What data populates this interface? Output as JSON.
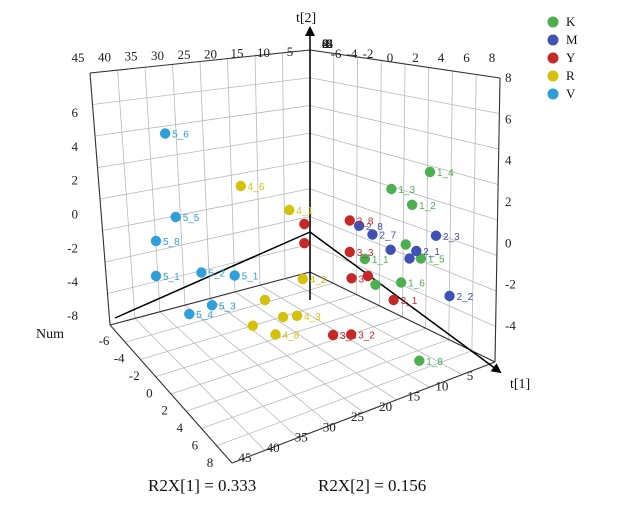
{
  "chart_data": {
    "type": "scatter",
    "projection": "3d",
    "axes": {
      "x": {
        "label": "t[1]",
        "ticks": [
          5,
          10,
          15,
          20,
          25,
          30,
          35,
          40,
          45
        ]
      },
      "y": {
        "label": "t[2]",
        "ticks": [
          -8,
          -6,
          -4,
          -2,
          0,
          2,
          4,
          6,
          8
        ],
        "back_ticks": [
          45,
          40,
          35,
          30,
          25,
          20,
          15,
          10,
          5
        ],
        "right_ticks": [
          0,
          2,
          4,
          6,
          8
        ]
      },
      "z": {
        "label": "Num",
        "ticks": [
          -6,
          -4,
          -2,
          0,
          2,
          4,
          6,
          8
        ],
        "left_ticks": [
          6,
          4,
          2,
          0,
          -2,
          -4,
          -8
        ],
        "right_ticks": [
          8,
          6,
          4,
          2,
          0,
          -2,
          -4
        ]
      }
    },
    "legend": {
      "position": "top-right",
      "items": [
        {
          "label": "K",
          "color": "#4caf50"
        },
        {
          "label": "M",
          "color": "#3f51b5"
        },
        {
          "label": "Y",
          "color": "#c62828"
        },
        {
          "label": "R",
          "color": "#d4c20a"
        },
        {
          "label": "V",
          "color": "#2e9fd8"
        }
      ]
    },
    "grid": true,
    "series": [
      {
        "name": "K",
        "color": "#4caf50",
        "points": [
          {
            "label": "1_4",
            "x": 3.0,
            "y": 3.6,
            "z": 0.0
          },
          {
            "label": "1_3",
            "x": 8.5,
            "y": 2.8,
            "z": 0.5
          },
          {
            "label": "1_2",
            "x": 6.0,
            "y": 2.0,
            "z": 0.8
          },
          {
            "label": "1_1",
            "x": 12.0,
            "y": -1.2,
            "z": 0.5
          },
          {
            "label": "1_5",
            "x": 5.0,
            "y": -1.0,
            "z": 1.0
          },
          {
            "label": "1_6",
            "x": 8.0,
            "y": -2.2,
            "z": 1.5
          },
          {
            "label": "1_8",
            "x": 6.0,
            "y": -6.5,
            "z": 2.0
          },
          {
            "label": "",
            "x": 11.0,
            "y": -2.5,
            "z": 1.0
          },
          {
            "label": "",
            "x": 7.0,
            "y": -0.2,
            "z": 1.0
          }
        ]
      },
      {
        "name": "M",
        "color": "#3f51b5",
        "points": [
          {
            "label": "2_3",
            "x": 3.0,
            "y": 0.3,
            "z": 1.0
          },
          {
            "label": "2_1",
            "x": 6.0,
            "y": -0.4,
            "z": 1.5
          },
          {
            "label": "2_2",
            "x": 2.0,
            "y": -2.8,
            "z": 2.0
          },
          {
            "label": "2_7",
            "x": 11.0,
            "y": 0.2,
            "z": 0.5
          },
          {
            "label": "2_8",
            "x": 13.0,
            "y": 0.8,
            "z": 0.8
          },
          {
            "label": "",
            "x": 9.0,
            "y": -0.5,
            "z": 1.0
          },
          {
            "label": "",
            "x": 6.5,
            "y": -1.0,
            "z": 1.0
          }
        ]
      },
      {
        "name": "Y",
        "color": "#c62828",
        "points": [
          {
            "label": "3_8",
            "x": 14.0,
            "y": 1.0,
            "z": 0.5
          },
          {
            "label": "3_3",
            "x": 14.0,
            "y": -0.8,
            "z": 0.5
          },
          {
            "label": "3_1",
            "x": 9.0,
            "y": -3.2,
            "z": 1.5
          },
          {
            "label": "3_2",
            "x": 15.0,
            "y": -5.0,
            "z": 2.0
          },
          {
            "label": "3_4",
            "x": 17.0,
            "y": -5.2,
            "z": 1.5
          },
          {
            "label": "3",
            "x": 14.0,
            "y": -2.2,
            "z": 0.8
          },
          {
            "label": "",
            "x": 20.0,
            "y": 0.8,
            "z": 0.5
          },
          {
            "label": "",
            "x": 20.0,
            "y": -0.3,
            "z": 0.5
          },
          {
            "label": "",
            "x": 12.0,
            "y": -2.0,
            "z": 1.0
          }
        ]
      },
      {
        "name": "R",
        "color": "#d4c20a",
        "points": [
          {
            "label": "4_6",
            "x": 28.0,
            "y": 2.8,
            "z": 0.0
          },
          {
            "label": "4_1",
            "x": 22.0,
            "y": 1.6,
            "z": 0.5
          },
          {
            "label": "4_2",
            "x": 21.0,
            "y": -2.0,
            "z": 1.5
          },
          {
            "label": "4_3",
            "x": 22.0,
            "y": -4.0,
            "z": 1.8
          },
          {
            "label": "4_8",
            "x": 25.0,
            "y": -5.0,
            "z": 2.0
          },
          {
            "label": "",
            "x": 26.0,
            "y": -3.2,
            "z": 1.5
          },
          {
            "label": "",
            "x": 24.0,
            "y": -4.0,
            "z": 2.0
          },
          {
            "label": "",
            "x": 28.0,
            "y": -4.5,
            "z": 2.0
          }
        ]
      },
      {
        "name": "V",
        "color": "#2e9fd8",
        "points": [
          {
            "label": "5_6",
            "x": 38.0,
            "y": 5.8,
            "z": 0.0
          },
          {
            "label": "5_5",
            "x": 37.0,
            "y": 1.2,
            "z": 0.5
          },
          {
            "label": "5_8",
            "x": 40.0,
            "y": 0.0,
            "z": 1.0
          },
          {
            "label": "5_1",
            "x": 40.0,
            "y": -2.0,
            "z": 1.0
          },
          {
            "label": "5_2",
            "x": 34.0,
            "y": -1.8,
            "z": 1.0
          },
          {
            "label": "5_3",
            "x": 33.0,
            "y": -3.5,
            "z": 1.5
          },
          {
            "label": "5_4",
            "x": 36.0,
            "y": -4.0,
            "z": 1.5
          },
          {
            "label": "5_1",
            "x": 30.0,
            "y": -1.8,
            "z": 1.5
          }
        ]
      }
    ],
    "footer": {
      "r2x1": "R2X[1] = 0.333",
      "r2x2": "R2X[2] = 0.156"
    }
  }
}
